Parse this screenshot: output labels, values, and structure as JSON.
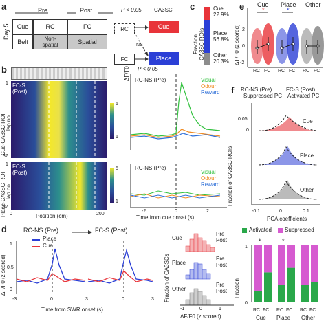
{
  "panels": {
    "a": "a",
    "b": "b",
    "c": "c",
    "d": "d",
    "e": "e",
    "f": "f"
  },
  "a": {
    "day": "Day 5",
    "pre": "Pre",
    "post": "Post",
    "cue": "Cue",
    "belt": "Belt",
    "rc": "RC",
    "fc": "FC",
    "nonspatial": "Non-\nspatial",
    "spatial": "Spatial",
    "p1": "P < 0.05",
    "ca3sc": "CA3SC",
    "ns": "NS",
    "p2": "P < 0.05",
    "cue_out": "Cue",
    "place_out": "Place",
    "fc2": "FC"
  },
  "b": {
    "top_label": "FC-S\n(Post)",
    "cue_roi": "Cue-CA3SC ROI",
    "lap_no": "lap no.",
    "lap_start": "1",
    "lap_end": "37",
    "place_roi": "Place-CA3SC ROI",
    "lap_no2": "lap no.",
    "lap_start2": "1",
    "lap_end2": "37",
    "bottom_label": "FC-S\n(Post)",
    "xlabel": "Position (cm)",
    "xticks": [
      "0",
      "200"
    ],
    "cbar_ticks_top": [
      "5",
      "1"
    ],
    "cbar_ticks_bot": [
      "5",
      "1"
    ],
    "trace_title1": "RC-NS (Pre)",
    "trace_title2": "RC-NS (Pre)",
    "ylabel": "ΔF/F0",
    "legend": [
      "Visual",
      "Odour",
      "Reward"
    ],
    "trace_xlabel": "Time from cue onset (s)",
    "trace_xticks": [
      "-2",
      "0",
      "2"
    ]
  },
  "c": {
    "ylabel": "Fraction\nCA3SC ROIs",
    "cue": "Cue",
    "cue_pct": "22.9%",
    "place": "Place",
    "place_pct": "56.8%",
    "other": "Other",
    "other_pct": "20.3%"
  },
  "d": {
    "pre": "RC-NS (Pre)",
    "post": "FC-S (Post)",
    "legend": [
      "Place",
      "Cue"
    ],
    "ylabel": "ΔF/F0 (z scored)",
    "yticks": [
      "1",
      "0.5",
      "0"
    ],
    "xlabel": "Time from SWR onset (s)",
    "xticks": [
      "-3",
      "0",
      "3",
      "-3",
      "0",
      "3"
    ],
    "hist_ylabel": "Fraction of CA3SCs",
    "hist_labels": [
      "Cue",
      "Place",
      "Other"
    ],
    "hist_legend": [
      "Pre",
      "Post"
    ],
    "hist_xlabel": "ΔF/F0 (z scored)",
    "hist_xticks": [
      "-1",
      "0",
      "1"
    ]
  },
  "e": {
    "groups": [
      "Cue",
      "Place",
      "Other"
    ],
    "sig": [
      "*",
      "*"
    ],
    "ylabel": "ΔF/F0 (z scored)",
    "yticks": [
      "2",
      "0",
      "-2"
    ],
    "xticks": [
      "RC",
      "FC",
      "RC",
      "FC",
      "RC",
      "FC"
    ]
  },
  "f": {
    "legend": [
      "RC-NS (Pre)",
      "FC-S (Post)",
      "Suppressed PC",
      "Activated PC"
    ],
    "ylabel": "Fraction of CA3SC ROIs",
    "yticks": [
      "0.05",
      "0"
    ],
    "labels": [
      "Cue",
      "Place",
      "Other"
    ],
    "xlabel": "PCA coefficients",
    "xticks": [
      "-0.1",
      "0",
      "0.1"
    ],
    "bar_legend": [
      "Activated",
      "Suppressed"
    ],
    "sig": [
      "*",
      "*"
    ],
    "bar_ylabel": "Fraction",
    "bar_yticks": [
      "1",
      "0"
    ],
    "bar_xticks": [
      "RC",
      "FC",
      "RC",
      "FC",
      "RC",
      "FC"
    ],
    "bar_groups": [
      "Cue",
      "Place",
      "Other"
    ]
  },
  "colors": {
    "cue": "#e8343a",
    "place": "#2b3fd6",
    "other": "#8c8c8c",
    "visual": "#33c13f",
    "odour": "#f08b22",
    "reward": "#2e6fd8",
    "activated": "#2aa84a",
    "suppressed": "#d65bd0"
  },
  "chart_data": [
    {
      "type": "bar",
      "title": "",
      "categories": [
        "Cue",
        "Place",
        "Other"
      ],
      "values": [
        22.9,
        56.8,
        20.3
      ],
      "ylabel": "Fraction CA3SC ROIs"
    },
    {
      "type": "bar",
      "categories": [
        "RC",
        "FC",
        "RC",
        "FC",
        "RC",
        "FC"
      ],
      "series": [
        {
          "name": "Activated",
          "values": [
            0.2,
            0.52,
            0.3,
            0.6,
            0.3,
            0.35
          ]
        },
        {
          "name": "Suppressed",
          "values": [
            0.8,
            0.48,
            0.7,
            0.4,
            0.7,
            0.65
          ]
        }
      ],
      "ylabel": "Fraction",
      "ylim": [
        0,
        1
      ]
    }
  ]
}
